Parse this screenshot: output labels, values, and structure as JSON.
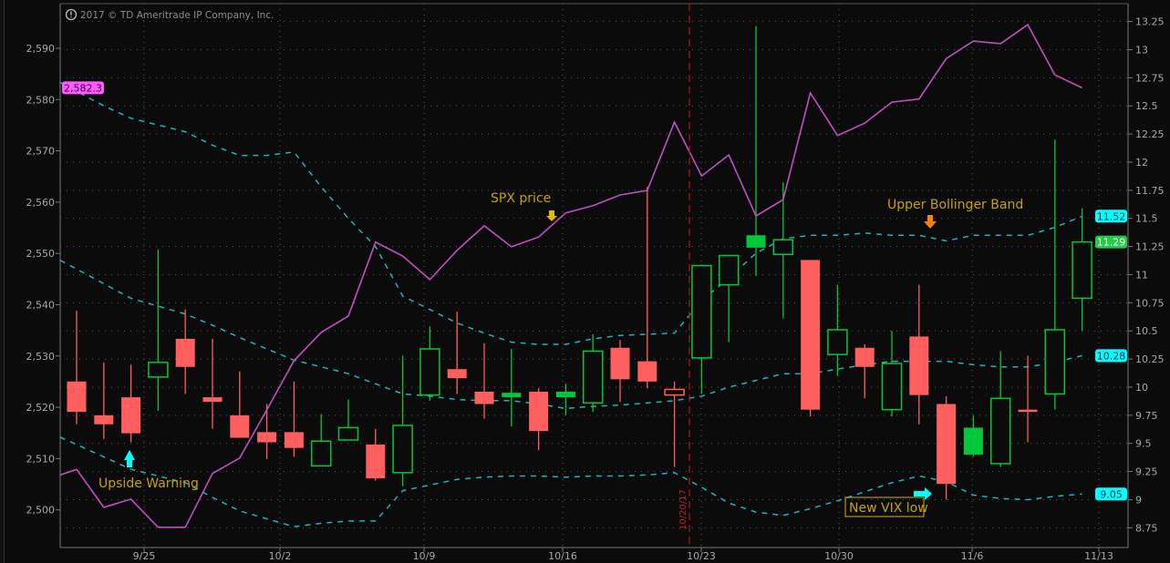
{
  "copyright": "2017 © TD Ameritrade IP Company, Inc.",
  "chart_data": {
    "type": "candlestick",
    "year": 2017,
    "dates": [
      "9/20",
      "9/21",
      "9/22",
      "9/25",
      "9/26",
      "9/27",
      "9/28",
      "9/29",
      "10/2",
      "10/3",
      "10/4",
      "10/5",
      "10/6",
      "10/9",
      "10/10",
      "10/11",
      "10/12",
      "10/13",
      "10/16",
      "10/17",
      "10/18",
      "10/19",
      "10/20",
      "10/23",
      "10/24",
      "10/25",
      "10/26",
      "10/27",
      "10/30",
      "10/31",
      "11/1",
      "11/2",
      "11/3",
      "11/6",
      "11/7",
      "11/8",
      "11/9",
      "11/10"
    ],
    "candles": [
      {
        "o": 10.05,
        "h": 10.68,
        "l": 9.67,
        "c": 9.78
      },
      {
        "o": 9.75,
        "h": 10.22,
        "l": 9.54,
        "c": 9.67
      },
      {
        "o": 9.91,
        "h": 10.2,
        "l": 9.51,
        "c": 9.59
      },
      {
        "o": 10.09,
        "h": 11.22,
        "l": 9.79,
        "c": 10.22
      },
      {
        "o": 10.43,
        "h": 10.69,
        "l": 9.94,
        "c": 10.18
      },
      {
        "o": 9.91,
        "h": 10.43,
        "l": 9.63,
        "c": 9.87
      },
      {
        "o": 9.75,
        "h": 10.14,
        "l": 9.55,
        "c": 9.55
      },
      {
        "o": 9.6,
        "h": 9.85,
        "l": 9.36,
        "c": 9.51
      },
      {
        "o": 9.6,
        "h": 10.05,
        "l": 9.38,
        "c": 9.46
      },
      {
        "o": 9.3,
        "h": 9.76,
        "l": 9.3,
        "c": 9.52
      },
      {
        "o": 9.53,
        "h": 9.89,
        "l": 9.53,
        "c": 9.64
      },
      {
        "o": 9.49,
        "h": 9.63,
        "l": 9.17,
        "c": 9.19
      },
      {
        "o": 9.24,
        "h": 10.28,
        "l": 9.12,
        "c": 9.66
      },
      {
        "o": 9.93,
        "h": 10.54,
        "l": 9.88,
        "c": 10.34
      },
      {
        "o": 10.16,
        "h": 10.67,
        "l": 9.94,
        "c": 10.08
      },
      {
        "o": 9.96,
        "h": 10.39,
        "l": 9.72,
        "c": 9.85
      },
      {
        "o": 9.95,
        "h": 10.34,
        "l": 9.65,
        "c": 9.91
      },
      {
        "o": 9.96,
        "h": 9.99,
        "l": 9.44,
        "c": 9.61
      },
      {
        "o": 9.96,
        "h": 10.03,
        "l": 9.75,
        "c": 9.91
      },
      {
        "o": 9.86,
        "h": 10.47,
        "l": 9.78,
        "c": 10.32
      },
      {
        "o": 10.35,
        "h": 10.42,
        "l": 9.87,
        "c": 10.07
      },
      {
        "o": 10.23,
        "h": 11.78,
        "l": 9.99,
        "c": 10.05
      },
      {
        "o": 9.93,
        "h": 10.05,
        "l": 9.29,
        "c": 9.98
      },
      {
        "o": 10.26,
        "h": 11.09,
        "l": 9.94,
        "c": 11.08
      },
      {
        "o": 10.91,
        "h": 11.17,
        "l": 10.4,
        "c": 11.17
      },
      {
        "o": 11.35,
        "h": 13.21,
        "l": 10.99,
        "c": 11.24
      },
      {
        "o": 11.18,
        "h": 11.82,
        "l": 10.61,
        "c": 11.31
      },
      {
        "o": 11.13,
        "h": 11.13,
        "l": 9.74,
        "c": 9.8
      },
      {
        "o": 10.29,
        "h": 10.91,
        "l": 10.1,
        "c": 10.51
      },
      {
        "o": 10.35,
        "h": 10.38,
        "l": 9.9,
        "c": 10.18
      },
      {
        "o": 9.8,
        "h": 10.5,
        "l": 9.74,
        "c": 10.21
      },
      {
        "o": 10.45,
        "h": 10.91,
        "l": 9.67,
        "c": 9.93
      },
      {
        "o": 9.85,
        "h": 9.92,
        "l": 9.0,
        "c": 9.14
      },
      {
        "o": 9.64,
        "h": 9.75,
        "l": 9.38,
        "c": 9.4
      },
      {
        "o": 9.32,
        "h": 10.32,
        "l": 9.29,
        "c": 9.9
      },
      {
        "o": 9.8,
        "h": 10.28,
        "l": 9.51,
        "c": 9.78
      },
      {
        "o": 9.94,
        "h": 12.2,
        "l": 9.8,
        "c": 10.51
      },
      {
        "o": 10.79,
        "h": 11.59,
        "l": 10.5,
        "c": 11.29
      }
    ],
    "bollinger_upper": [
      12.63,
      12.5,
      12.39,
      12.33,
      12.27,
      12.15,
      12.06,
      12.06,
      12.09,
      11.78,
      11.5,
      11.25,
      10.81,
      10.69,
      10.57,
      10.48,
      10.4,
      10.38,
      10.38,
      10.43,
      10.46,
      10.47,
      10.48,
      10.77,
      10.97,
      11.19,
      11.32,
      11.35,
      11.35,
      11.37,
      11.35,
      11.35,
      11.3,
      11.35,
      11.35,
      11.35,
      11.42,
      11.52
    ],
    "bollinger_middle": [
      11.05,
      10.92,
      10.79,
      10.72,
      10.65,
      10.55,
      10.44,
      10.34,
      10.24,
      10.18,
      10.12,
      10.03,
      9.94,
      9.92,
      9.89,
      9.88,
      9.88,
      9.85,
      9.81,
      9.83,
      9.84,
      9.86,
      9.88,
      9.92,
      10.0,
      10.06,
      10.12,
      10.12,
      10.16,
      10.2,
      10.23,
      10.23,
      10.23,
      10.2,
      10.18,
      10.18,
      10.22,
      10.28
    ],
    "bollinger_lower": [
      9.49,
      9.38,
      9.27,
      9.21,
      9.15,
      9.02,
      8.9,
      8.83,
      8.76,
      8.79,
      8.81,
      8.81,
      9.08,
      9.13,
      9.18,
      9.2,
      9.21,
      9.21,
      9.2,
      9.21,
      9.21,
      9.22,
      9.24,
      9.11,
      8.97,
      8.89,
      8.86,
      8.92,
      8.99,
      9.07,
      9.15,
      9.21,
      9.16,
      9.04,
      9.01,
      9.0,
      9.03,
      9.05
    ],
    "spx": [
      2507.9,
      2500.5,
      2502.1,
      2496.6,
      2496.6,
      2507.1,
      2510.1,
      2519.5,
      2529.1,
      2534.6,
      2537.8,
      2552.2,
      2549.5,
      2544.9,
      2550.6,
      2555.4,
      2551.3,
      2553.2,
      2557.9,
      2559.3,
      2561.4,
      2562.3,
      2575.6,
      2565.1,
      2569.2,
      2557.3,
      2560.5,
      2581.3,
      2573.0,
      2575.4,
      2579.5,
      2580.1,
      2588.0,
      2591.4,
      2590.9,
      2594.6,
      2584.8,
      2582.3
    ],
    "left_axis": {
      "ticks": [
        "2,500",
        "2,510",
        "2,520",
        "2,530",
        "2,540",
        "2,550",
        "2,560",
        "2,570",
        "2,580",
        "2,590"
      ],
      "ylim": [
        2500,
        2590
      ]
    },
    "right_axis": {
      "ticks": [
        "8.75",
        "9",
        "9.25",
        "9.5",
        "9.75",
        "10",
        "10.25",
        "10.5",
        "10.75",
        "11",
        "11.25",
        "11.5",
        "11.75",
        "12",
        "12.25",
        "12.5",
        "12.75",
        "13",
        "13.25"
      ],
      "ylim": [
        8.75,
        13.25
      ]
    },
    "x_ticks": [
      "9/25",
      "10/2",
      "10/9",
      "10/16",
      "10/23",
      "10/30",
      "11/6",
      "11/13"
    ],
    "price_labels": {
      "spx_last": "2,582.3",
      "upper_band": "11.52",
      "last_close": "11.29",
      "middle_band": "10.28",
      "lower_band": "9.05"
    },
    "marker_line": {
      "label": "10/20/17"
    },
    "annotations": {
      "upside_warning": "Upside Warning",
      "spx_price": "SPX price",
      "upper_bollinger": "Upper Bollinger Band",
      "new_vix_low": "New VIX low"
    },
    "grid": true,
    "colors": {
      "background": "#0b0b0b",
      "up": "#00c83a",
      "down": "#ff5f5f",
      "spx_line": "#c050c0",
      "bands": "#1fb3bb",
      "annotation_text": "#c9a200",
      "arrow_cyan": "#00ffff",
      "arrow_gold": "#e8b800",
      "arrow_orange": "#ff8000",
      "spx_label": "#ff5cff",
      "band_label": "#00ffff",
      "close_label": "#22cc44",
      "marker_line": "#b01010"
    }
  }
}
